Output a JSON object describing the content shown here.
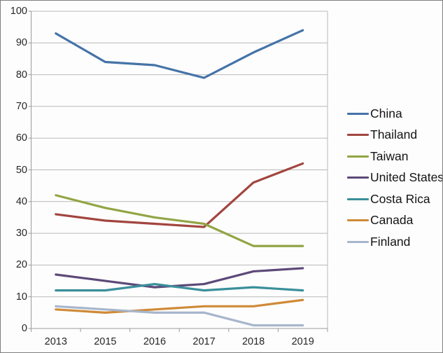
{
  "chart_data": {
    "type": "line",
    "title": "",
    "xlabel": "",
    "ylabel": "",
    "categories": [
      "2013",
      "2015",
      "2016",
      "2017",
      "2018",
      "2019"
    ],
    "series": [
      {
        "name": "China",
        "color": "#4573A7",
        "values": [
          93,
          84,
          83,
          79,
          87,
          94
        ]
      },
      {
        "name": "Thailand",
        "color": "#A2453F",
        "values": [
          36,
          34,
          33,
          32,
          46,
          52
        ]
      },
      {
        "name": "Taiwan",
        "color": "#92A545",
        "values": [
          42,
          38,
          35,
          33,
          26,
          26
        ]
      },
      {
        "name": "United States",
        "color": "#5C4978",
        "values": [
          17,
          15,
          13,
          14,
          18,
          19
        ]
      },
      {
        "name": "Costa Rica",
        "color": "#3A8F9B",
        "values": [
          12,
          12,
          14,
          12,
          13,
          12
        ]
      },
      {
        "name": "Canada",
        "color": "#CF8A38",
        "values": [
          6,
          5,
          6,
          7,
          7,
          9
        ]
      },
      {
        "name": "Finland",
        "color": "#A7B6CC",
        "values": [
          7,
          6,
          5,
          5,
          1,
          1
        ]
      }
    ],
    "ylim": [
      0,
      100
    ],
    "ytick_step": 10,
    "yticks": [
      "0",
      "10",
      "20",
      "30",
      "40",
      "50",
      "60",
      "70",
      "80",
      "90",
      "100"
    ],
    "grid": true,
    "legend_position": "right",
    "colors": {
      "gridline": "#B9B9B9",
      "axis": "#9B9B9B",
      "tick_text": "#262626",
      "frame_border": "#7E7E7E"
    }
  }
}
